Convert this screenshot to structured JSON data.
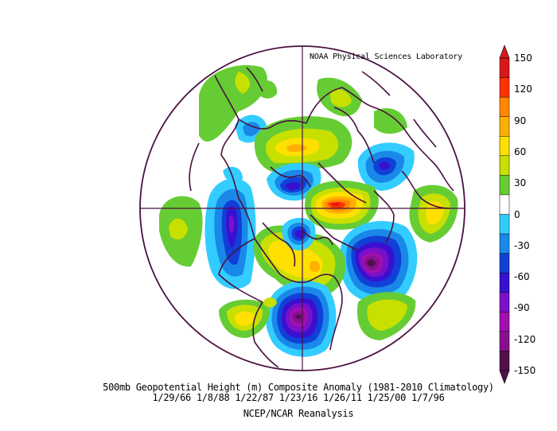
{
  "credit": "NOAA Physical Sciences Laboratory",
  "caption": {
    "line1": "500mb Geopotential Height (m) Composite Anomaly (1981-2010 Climatology)",
    "line2": "1/29/66 1/8/88 1/22/87 1/23/16 1/26/11 1/25/00 1/7/96",
    "line3": "NCEP/NCAR Reanalysis"
  },
  "colorbar": {
    "labels": [
      "150",
      "120",
      "90",
      "60",
      "30",
      "0",
      "-30",
      "-60",
      "-90",
      "-120",
      "-150"
    ],
    "colors": [
      "#d7191c",
      "#ff3300",
      "#ff8800",
      "#ffb000",
      "#ffe000",
      "#c8e000",
      "#66cc33",
      "#ffffff",
      "#33ccff",
      "#1a88e8",
      "#1040d8",
      "#3a10d0",
      "#7a10c8",
      "#a010b0",
      "#881090",
      "#50104a"
    ]
  },
  "map": {
    "projection": "north-polar-stereographic",
    "anomalies": [
      {
        "id": "negative-center-north-atlantic",
        "sign": "negative",
        "level": "-150"
      },
      {
        "id": "negative-center-north-pacific",
        "sign": "negative",
        "level": "-150"
      },
      {
        "id": "negative-center-west-siberia",
        "sign": "negative",
        "level": "-90"
      },
      {
        "id": "negative-center-arctic",
        "sign": "negative",
        "level": "-120"
      },
      {
        "id": "positive-center-greenland",
        "sign": "positive",
        "level": "150"
      },
      {
        "id": "positive-center-alaska",
        "sign": "positive",
        "level": "90"
      },
      {
        "id": "positive-center-north-russia",
        "sign": "positive",
        "level": "90"
      }
    ]
  }
}
